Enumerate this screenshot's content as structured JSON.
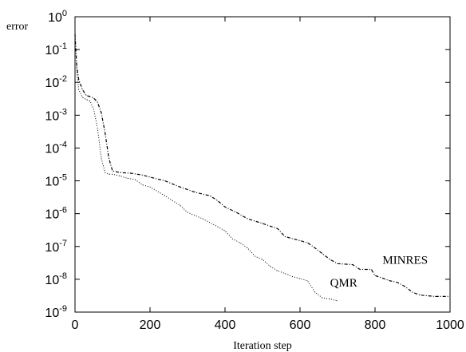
{
  "chart_data": {
    "type": "line",
    "title": "",
    "xlabel": "Iteration step",
    "ylabel": "error",
    "xlim": [
      0,
      1000
    ],
    "ylim": [
      1e-09,
      1
    ],
    "yscale": "log",
    "grid": false,
    "x_ticks": [
      "0",
      "200",
      "400",
      "600",
      "800",
      "1000"
    ],
    "y_ticks": [
      {
        "base": "10",
        "exp": "0"
      },
      {
        "base": "10",
        "exp": "-1"
      },
      {
        "base": "10",
        "exp": "-2"
      },
      {
        "base": "10",
        "exp": "-3"
      },
      {
        "base": "10",
        "exp": "-4"
      },
      {
        "base": "10",
        "exp": "-5"
      },
      {
        "base": "10",
        "exp": "-6"
      },
      {
        "base": "10",
        "exp": "-7"
      },
      {
        "base": "10",
        "exp": "-8"
      },
      {
        "base": "10",
        "exp": "-9"
      }
    ],
    "series": [
      {
        "name": "MINRES",
        "style": "dash-dot",
        "color": "#000000",
        "points": [
          [
            0,
            0.3
          ],
          [
            5,
            0.03
          ],
          [
            10,
            0.012
          ],
          [
            20,
            0.006
          ],
          [
            30,
            0.004
          ],
          [
            40,
            0.0037
          ],
          [
            50,
            0.0033
          ],
          [
            60,
            0.0025
          ],
          [
            70,
            0.0012
          ],
          [
            80,
            0.0003
          ],
          [
            90,
            5e-05
          ],
          [
            100,
            2e-05
          ],
          [
            120,
            1.8e-05
          ],
          [
            150,
            1.7e-05
          ],
          [
            180,
            1.5e-05
          ],
          [
            200,
            1.3e-05
          ],
          [
            240,
            1e-05
          ],
          [
            260,
            8e-06
          ],
          [
            280,
            6.5e-06
          ],
          [
            320,
            4.5e-06
          ],
          [
            360,
            3.5e-06
          ],
          [
            380,
            2.5e-06
          ],
          [
            400,
            1.6e-06
          ],
          [
            430,
            1.1e-06
          ],
          [
            460,
            7e-07
          ],
          [
            500,
            5e-07
          ],
          [
            540,
            3.5e-07
          ],
          [
            560,
            2e-07
          ],
          [
            600,
            1.5e-07
          ],
          [
            620,
            1.3e-07
          ],
          [
            640,
            9e-08
          ],
          [
            660,
            6e-08
          ],
          [
            680,
            4e-08
          ],
          [
            700,
            3e-08
          ],
          [
            740,
            2.8e-08
          ],
          [
            760,
            2e-08
          ],
          [
            790,
            2e-08
          ],
          [
            800,
            1.3e-08
          ],
          [
            840,
            9e-09
          ],
          [
            860,
            8e-09
          ],
          [
            880,
            6e-09
          ],
          [
            900,
            4e-09
          ],
          [
            920,
            3.3e-09
          ],
          [
            960,
            3e-09
          ],
          [
            1000,
            3e-09
          ]
        ]
      },
      {
        "name": "QMR",
        "style": "dotted",
        "color": "#000000",
        "points": [
          [
            0,
            0.3
          ],
          [
            5,
            0.02
          ],
          [
            10,
            0.006
          ],
          [
            20,
            0.0035
          ],
          [
            30,
            0.003
          ],
          [
            40,
            0.0027
          ],
          [
            50,
            0.0015
          ],
          [
            60,
            0.0004
          ],
          [
            70,
            5e-05
          ],
          [
            80,
            1.8e-05
          ],
          [
            90,
            1.6e-05
          ],
          [
            100,
            1.6e-05
          ],
          [
            120,
            1.4e-05
          ],
          [
            140,
            1.2e-05
          ],
          [
            160,
            1.1e-05
          ],
          [
            180,
            7.5e-06
          ],
          [
            200,
            6.5e-06
          ],
          [
            240,
            3.5e-06
          ],
          [
            260,
            2.5e-06
          ],
          [
            280,
            1.8e-06
          ],
          [
            300,
            1.1e-06
          ],
          [
            340,
            7e-07
          ],
          [
            380,
            4e-07
          ],
          [
            400,
            3e-07
          ],
          [
            420,
            1.7e-07
          ],
          [
            440,
            1.3e-07
          ],
          [
            460,
            9e-08
          ],
          [
            480,
            5e-08
          ],
          [
            500,
            4e-08
          ],
          [
            520,
            2.5e-08
          ],
          [
            540,
            1.8e-08
          ],
          [
            560,
            1.5e-08
          ],
          [
            580,
            1.2e-08
          ],
          [
            600,
            1.05e-08
          ],
          [
            620,
            9e-09
          ],
          [
            640,
            4e-09
          ],
          [
            660,
            2.7e-09
          ],
          [
            680,
            2.5e-09
          ],
          [
            700,
            2.2e-09
          ]
        ]
      }
    ],
    "annotations": [
      {
        "text": "MINRES",
        "x": 820,
        "y": 3e-08
      },
      {
        "text": "QMR",
        "x": 680,
        "y": 6e-09
      }
    ]
  }
}
